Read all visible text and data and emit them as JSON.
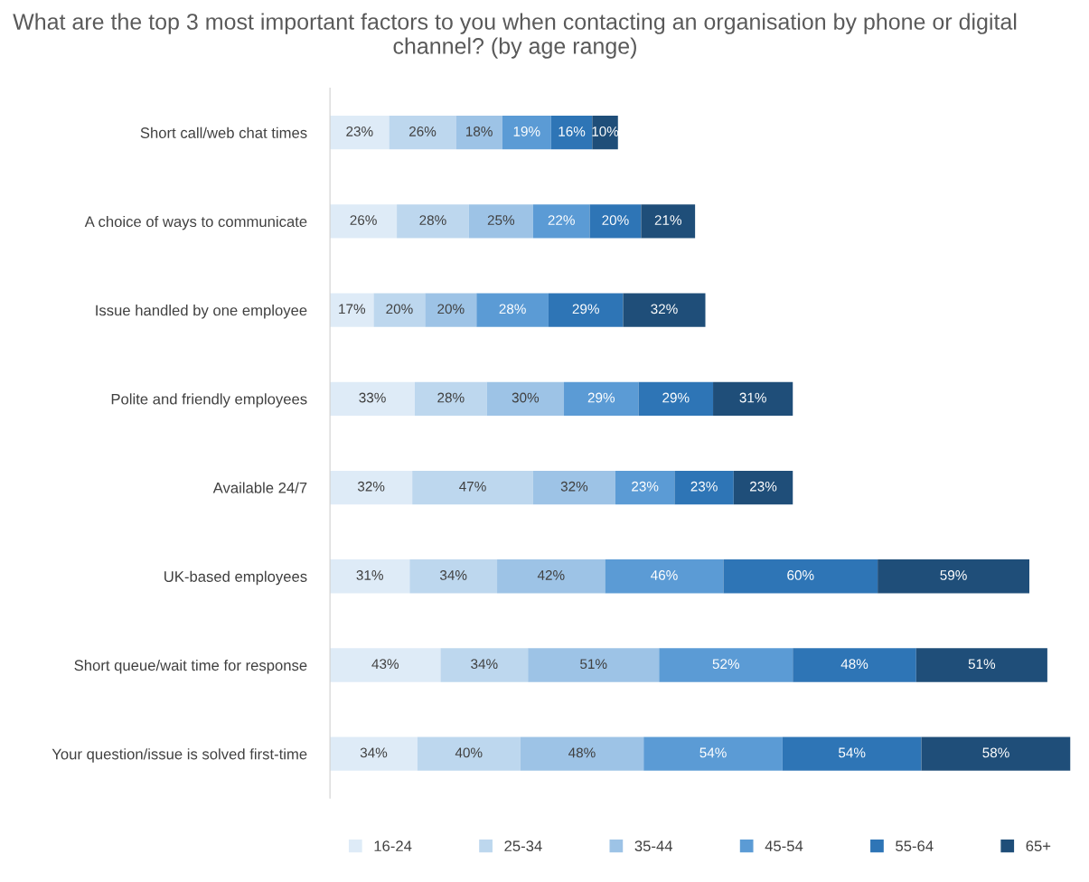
{
  "chart_data": {
    "type": "bar",
    "orientation": "horizontal",
    "stacked": true,
    "legend": "bottom",
    "grid": false,
    "tick_labels": "y",
    "title": "What are the top 3 most important factors to you when contacting an organisation by phone or digital channel? (by age range)",
    "categories": [
      "Short call/web chat times",
      "A choice of ways to communicate",
      "Issue handled by one employee",
      "Polite and friendly employees",
      "Available 24/7",
      "UK-based employees",
      "Short queue/wait time for response",
      "Your question/issue is solved first-time"
    ],
    "series": [
      {
        "name": "16-24",
        "color": "#deebf7",
        "values": [
          23,
          26,
          17,
          33,
          32,
          31,
          43,
          34
        ],
        "value_labels": [
          "23%",
          "26%",
          "17%",
          "33%",
          "32%",
          "31%",
          "43%",
          "34%"
        ]
      },
      {
        "name": "25-34",
        "color": "#bdd7ee",
        "values": [
          26,
          28,
          20,
          28,
          47,
          34,
          34,
          40
        ],
        "value_labels": [
          "26%",
          "28%",
          "20%",
          "28%",
          "47%",
          "34%",
          "34%",
          "40%"
        ]
      },
      {
        "name": "35-44",
        "color": "#9dc3e6",
        "values": [
          18,
          25,
          20,
          30,
          32,
          42,
          51,
          48
        ],
        "value_labels": [
          "18%",
          "25%",
          "20%",
          "30%",
          "32%",
          "42%",
          "51%",
          "48%"
        ]
      },
      {
        "name": "45-54",
        "color": "#5b9bd5",
        "values": [
          19,
          22,
          28,
          29,
          23,
          46,
          52,
          54
        ],
        "value_labels": [
          "19%",
          "22%",
          "28%",
          "29%",
          "23%",
          "46%",
          "52%",
          "54%"
        ]
      },
      {
        "name": "55-64",
        "color": "#2e75b6",
        "values": [
          16,
          20,
          29,
          29,
          23,
          60,
          48,
          54
        ],
        "value_labels": [
          "16%",
          "20%",
          "29%",
          "29%",
          "23%",
          "60%",
          "48%",
          "54%"
        ]
      },
      {
        "name": "65+",
        "color": "#1f4e79",
        "values": [
          10,
          21,
          32,
          31,
          23,
          59,
          51,
          58
        ],
        "value_labels": [
          "10%",
          "21%",
          "32%",
          "31%",
          "23%",
          "59%",
          "51%",
          "58%"
        ]
      }
    ]
  }
}
